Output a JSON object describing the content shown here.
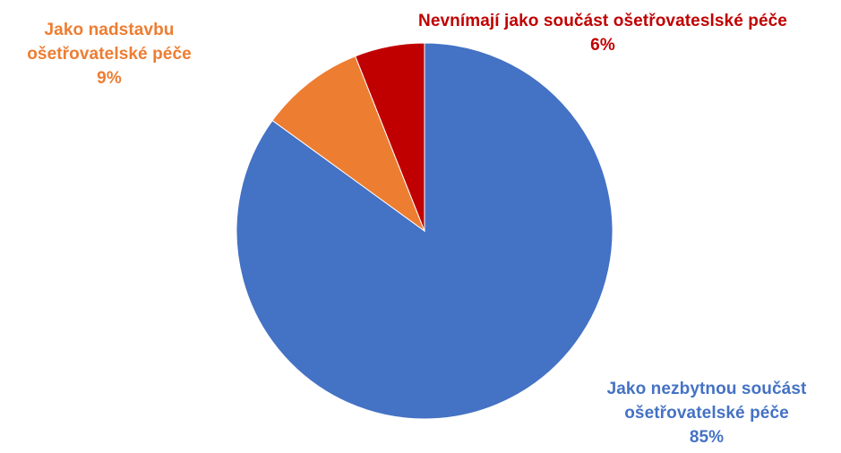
{
  "chart_data": {
    "type": "pie",
    "title": "",
    "slices": [
      {
        "line1": "Jako nezbytnou součást",
        "line2": "ošetřovatelské péče",
        "percent_label": "85%",
        "value": 85,
        "color": "#4472C4"
      },
      {
        "line1": "Jako nadstavbu",
        "line2": "ošetřovatelské péče",
        "percent_label": "9%",
        "value": 9,
        "color": "#ED7D31"
      },
      {
        "line1": "Nevnímají jako součást ošetřovateslské péče",
        "line2": "",
        "percent_label": "6%",
        "value": 6,
        "color": "#C00000"
      }
    ],
    "start_angle_deg": 0,
    "direction": "clockwise-from-top-reverse-order"
  }
}
